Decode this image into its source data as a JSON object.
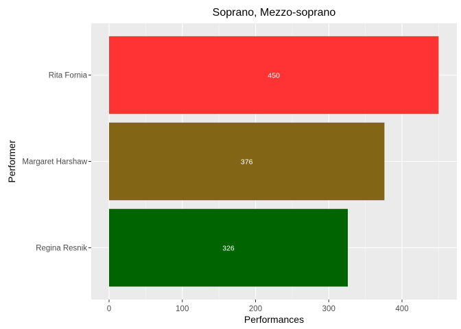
{
  "chart_data": {
    "type": "bar",
    "orientation": "horizontal",
    "title": "Soprano, Mezzo-soprano",
    "xlabel": "Performances",
    "ylabel": "Performer",
    "categories": [
      "Rita Fornia",
      "Margaret Harshaw",
      "Regina Resnik"
    ],
    "values": [
      450,
      376,
      326
    ],
    "data_labels": [
      "450",
      "376",
      "326"
    ],
    "bar_colors": [
      "#ff3333",
      "#826515",
      "#006400"
    ],
    "xlim": [
      0,
      460
    ],
    "x_ticks": [
      0,
      100,
      200,
      300,
      400
    ],
    "x_tick_labels": [
      "0",
      "100",
      "200",
      "300",
      "400"
    ],
    "grid": true,
    "legend": "none",
    "panel_background": "#ebebeb"
  }
}
